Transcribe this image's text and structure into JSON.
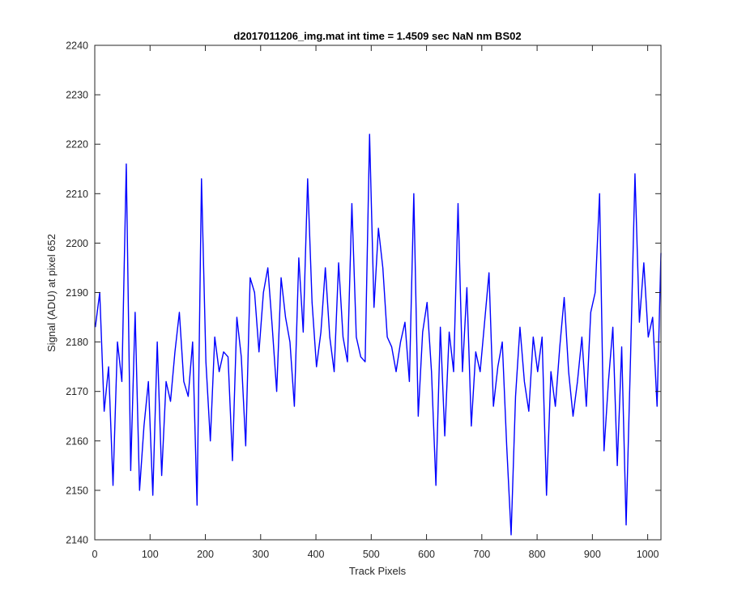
{
  "chart_data": {
    "type": "line",
    "title": "d2017011206_img.mat int time = 1.4509 sec  NaN nm BS02",
    "xlabel": "Track Pixels",
    "ylabel": "Signal (ADU) at pixel 652",
    "xlim": [
      0,
      1024
    ],
    "ylim": [
      2140,
      2240
    ],
    "xticks": [
      0,
      100,
      200,
      300,
      400,
      500,
      600,
      700,
      800,
      900,
      1000
    ],
    "yticks": [
      2140,
      2150,
      2160,
      2170,
      2180,
      2190,
      2200,
      2210,
      2220,
      2230,
      2240
    ],
    "grid": false,
    "legend": "none",
    "box": true,
    "colors": {
      "line": "#0000ff",
      "axes": "#262626",
      "background": "#ffffff"
    },
    "series": [
      {
        "x": [
          1,
          9,
          17,
          25,
          33,
          41,
          49,
          57,
          65,
          73,
          81,
          89,
          97,
          105,
          113,
          121,
          129,
          137,
          145,
          153,
          161,
          169,
          177,
          185,
          193,
          201,
          209,
          217,
          225,
          233,
          241,
          249,
          257,
          265,
          273,
          281,
          289,
          297,
          305,
          313,
          321,
          329,
          337,
          345,
          353,
          361,
          369,
          377,
          385,
          393,
          401,
          409,
          417,
          425,
          433,
          441,
          449,
          457,
          465,
          473,
          481,
          489,
          497,
          505,
          513,
          521,
          529,
          537,
          545,
          553,
          561,
          569,
          577,
          585,
          593,
          601,
          609,
          617,
          625,
          633,
          641,
          649,
          657,
          665,
          673,
          681,
          689,
          697,
          705,
          713,
          721,
          729,
          737,
          745,
          753,
          761,
          769,
          777,
          785,
          793,
          801,
          809,
          817,
          825,
          833,
          841,
          849,
          857,
          865,
          873,
          881,
          889,
          897,
          905,
          913,
          921,
          929,
          937,
          945,
          953,
          961,
          969,
          977,
          985,
          993,
          1001,
          1009,
          1017,
          1024
        ],
        "y": [
          2183,
          2190,
          2166,
          2175,
          2151,
          2180,
          2172,
          2216,
          2154,
          2186,
          2150,
          2163,
          2172,
          2149,
          2180,
          2153,
          2172,
          2168,
          2178,
          2186,
          2172,
          2169,
          2180,
          2147,
          2213,
          2176,
          2160,
          2181,
          2174,
          2178,
          2177,
          2156,
          2185,
          2177,
          2159,
          2193,
          2190,
          2178,
          2190,
          2195,
          2183,
          2170,
          2193,
          2185,
          2180,
          2167,
          2197,
          2182,
          2213,
          2188,
          2175,
          2182,
          2195,
          2181,
          2174,
          2196,
          2181,
          2176,
          2208,
          2181,
          2177,
          2176,
          2222,
          2187,
          2203,
          2195,
          2181,
          2179,
          2174,
          2180,
          2184,
          2172,
          2210,
          2165,
          2182,
          2188,
          2174,
          2151,
          2183,
          2161,
          2182,
          2174,
          2208,
          2174,
          2191,
          2163,
          2178,
          2174,
          2184,
          2194,
          2167,
          2175,
          2180,
          2159,
          2141,
          2169,
          2183,
          2172,
          2166,
          2181,
          2174,
          2181,
          2149,
          2174,
          2167,
          2179,
          2189,
          2174,
          2165,
          2172,
          2181,
          2167,
          2186,
          2190,
          2210,
          2158,
          2172,
          2183,
          2155,
          2179,
          2143,
          2177,
          2214,
          2184,
          2196,
          2181,
          2185,
          2167,
          2198
        ]
      }
    ]
  }
}
